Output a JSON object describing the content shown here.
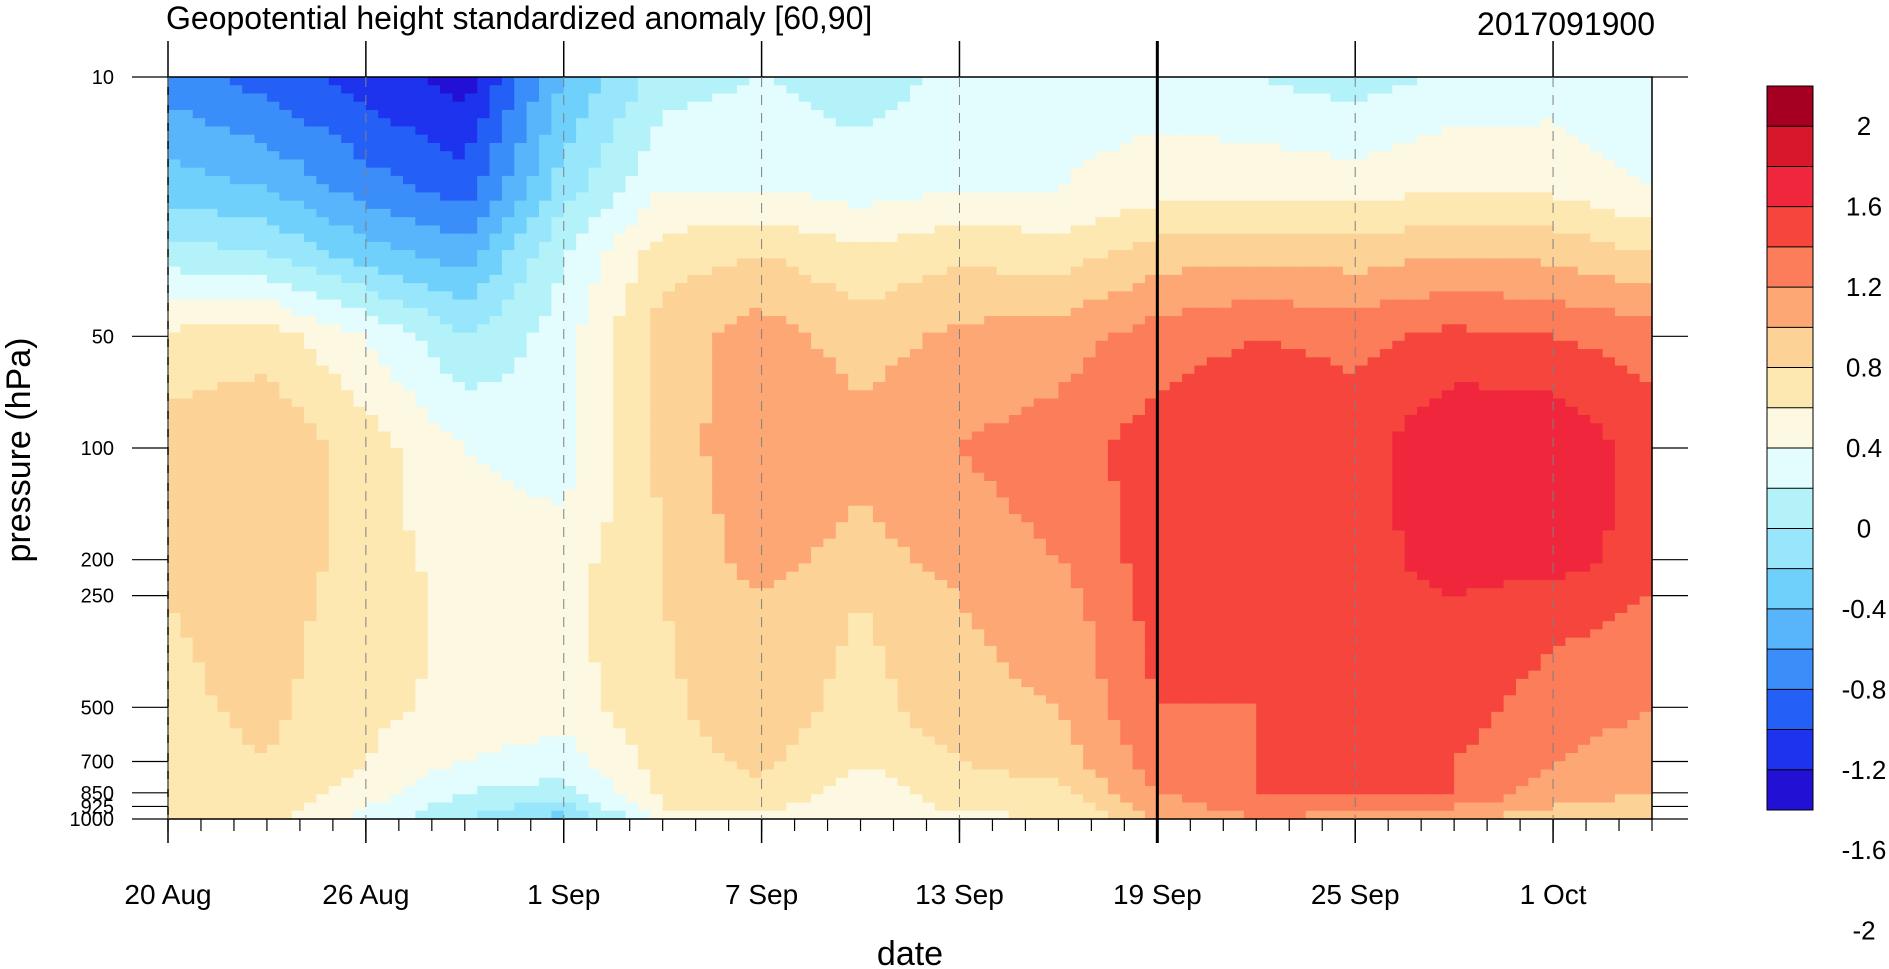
{
  "chart_data": {
    "type": "heatmap",
    "title": "Geopotential height standardized anomaly [60,90]",
    "date_code": "2017091900",
    "xlabel": "date",
    "ylabel": "pressure (hPa)",
    "x_ticks": [
      "20 Aug",
      "26 Aug",
      "1 Sep",
      "7 Sep",
      "13 Sep",
      "19 Sep",
      "25 Sep",
      "1 Oct"
    ],
    "x_tick_day_index": [
      0,
      6,
      12,
      18,
      24,
      30,
      36,
      42
    ],
    "x_range_days": [
      0,
      45
    ],
    "current_date_index": 30,
    "y_ticks": [
      "10",
      "50",
      "100",
      "200",
      "250",
      "500",
      "700",
      "850",
      "925",
      "1000"
    ],
    "y_tick_values": [
      10,
      50,
      100,
      200,
      250,
      500,
      700,
      850,
      925,
      1000
    ],
    "y_scale": "log",
    "y_range": [
      1000,
      10
    ],
    "colorbar": {
      "labels": [
        "2",
        "1.6",
        "1.2",
        "0.8",
        "0.4",
        "0",
        "-0.4",
        "-0.8",
        "-1.2",
        "-1.6",
        "-2"
      ],
      "colors": [
        "#a50021",
        "#d7182a",
        "#f0273c",
        "#f5453c",
        "#fb7d59",
        "#fda775",
        "#fcd296",
        "#fde8b2",
        "#fcf8e2",
        "#e3fcfd",
        "#b4f2fa",
        "#98e6fb",
        "#6fd1fb",
        "#58b4fb",
        "#3b8efa",
        "#2560f6",
        "#1e33ee",
        "#2211d4"
      ]
    },
    "field_grid": {
      "p_levels": [
        1000,
        925,
        850,
        700,
        500,
        250,
        200,
        100,
        50,
        30,
        20,
        10
      ],
      "days": [
        0,
        3,
        6,
        9,
        12,
        15,
        18,
        21,
        24,
        27,
        30,
        33,
        36,
        39,
        42,
        45
      ],
      "values": [
        [
          0.05,
          0.1,
          -0.3,
          -0.6,
          -0.9,
          -0.1,
          -0.05,
          -0.2,
          -0.05,
          0.0,
          0.4,
          0.6,
          0.5,
          0.4,
          0.3,
          0.2
        ],
        [
          0.05,
          0.15,
          -0.2,
          -0.5,
          -0.7,
          0.0,
          0.05,
          -0.15,
          0.05,
          0.05,
          0.5,
          0.7,
          0.7,
          0.6,
          0.4,
          0.3
        ],
        [
          0.1,
          0.2,
          -0.1,
          -0.4,
          -0.5,
          0.05,
          0.15,
          -0.1,
          0.1,
          0.15,
          0.6,
          0.8,
          0.8,
          0.8,
          0.5,
          0.4
        ],
        [
          0.1,
          0.2,
          0.0,
          -0.2,
          -0.3,
          0.1,
          0.25,
          0.0,
          0.2,
          0.3,
          0.7,
          0.8,
          0.9,
          0.8,
          0.6,
          0.5
        ],
        [
          0.15,
          0.25,
          0.05,
          -0.05,
          -0.1,
          0.15,
          0.35,
          0.1,
          0.35,
          0.4,
          0.8,
          0.8,
          0.9,
          0.9,
          0.7,
          0.6
        ],
        [
          0.2,
          0.3,
          0.1,
          -0.05,
          -0.05,
          0.2,
          0.4,
          0.2,
          0.4,
          0.5,
          0.9,
          0.9,
          0.9,
          1.0,
          0.9,
          0.8
        ],
        [
          0.25,
          0.35,
          0.1,
          -0.1,
          -0.1,
          0.2,
          0.5,
          0.3,
          0.5,
          0.6,
          0.9,
          0.95,
          0.9,
          1.1,
          1.1,
          0.9
        ],
        [
          0.3,
          0.4,
          0.1,
          -0.2,
          -0.3,
          0.25,
          0.6,
          0.5,
          0.6,
          0.7,
          0.9,
          1.0,
          0.9,
          1.2,
          1.2,
          0.9
        ],
        [
          0.05,
          0.1,
          -0.2,
          -0.6,
          -0.3,
          0.3,
          0.5,
          0.3,
          0.45,
          0.5,
          0.7,
          0.8,
          0.75,
          0.85,
          0.8,
          0.7
        ],
        [
          -0.5,
          -0.6,
          -0.9,
          -1.1,
          -0.4,
          0.1,
          0.2,
          0.05,
          0.15,
          0.1,
          0.3,
          0.35,
          0.3,
          0.4,
          0.35,
          0.2
        ],
        [
          -0.9,
          -1.0,
          -1.3,
          -1.5,
          -0.7,
          -0.2,
          -0.2,
          -0.3,
          -0.2,
          -0.2,
          -0.1,
          -0.05,
          -0.1,
          0.0,
          -0.05,
          -0.2
        ],
        [
          -1.3,
          -1.5,
          -1.7,
          -1.9,
          -1.0,
          -0.5,
          -0.4,
          -0.5,
          -0.35,
          -0.3,
          -0.3,
          -0.4,
          -0.5,
          -0.35,
          -0.3,
          -0.4
        ]
      ]
    }
  }
}
